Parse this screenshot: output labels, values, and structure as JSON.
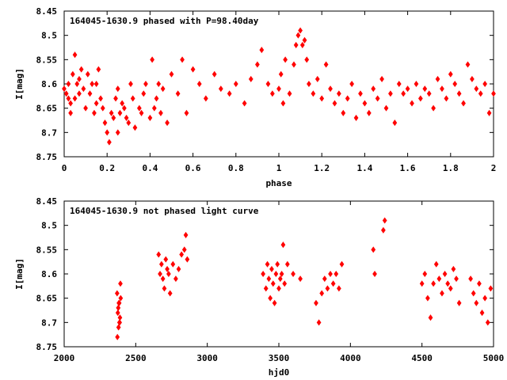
{
  "chart_data": [
    {
      "type": "scatter",
      "title": "164045-1630.9 phased with P=98.40day",
      "xlabel": "phase",
      "ylabel": "I[mag]",
      "xlim": [
        0,
        2
      ],
      "ylim": [
        8.45,
        8.75
      ],
      "y_inverted": true,
      "xticks": [
        "0",
        "0.2",
        "0.4",
        "0.6",
        "0.8",
        "1",
        "1.2",
        "1.4",
        "1.6",
        "1.8",
        "2"
      ],
      "yticks": [
        "8.45",
        "8.5",
        "8.55",
        "8.6",
        "8.65",
        "8.7",
        "8.75"
      ],
      "marker_color": "#ff0000",
      "series": [
        {
          "x": [
            0.0,
            0.01,
            0.02,
            0.02,
            0.03,
            0.03,
            0.04,
            0.05,
            0.05,
            0.06,
            0.07,
            0.07,
            0.08,
            0.09,
            0.1,
            0.11,
            0.12,
            0.13,
            0.14,
            0.15,
            0.15,
            0.16,
            0.17,
            0.18,
            0.19,
            0.2,
            0.21,
            0.22,
            0.23,
            0.24,
            0.25,
            0.25,
            0.26,
            0.27,
            0.28,
            0.29,
            0.3,
            0.31,
            0.32,
            0.33,
            0.35,
            0.36,
            0.37,
            0.38,
            0.4,
            0.41,
            0.42,
            0.43,
            0.44,
            0.45,
            0.46,
            0.48,
            0.5,
            0.53,
            0.55,
            0.57,
            0.6,
            0.63,
            0.66,
            0.7,
            0.73,
            0.77,
            0.8,
            0.84,
            0.87,
            0.9,
            0.92,
            0.95,
            0.97,
            1.0,
            1.01,
            1.02,
            1.03,
            1.05,
            1.07,
            1.08,
            1.09,
            1.1,
            1.11,
            1.12,
            1.13,
            1.14,
            1.16,
            1.18,
            1.2,
            1.22,
            1.24,
            1.26,
            1.28,
            1.3,
            1.32,
            1.34,
            1.36,
            1.38,
            1.4,
            1.42,
            1.44,
            1.46,
            1.48,
            1.5,
            1.52,
            1.54,
            1.56,
            1.58,
            1.6,
            1.62,
            1.64,
            1.66,
            1.68,
            1.7,
            1.72,
            1.74,
            1.76,
            1.78,
            1.8,
            1.82,
            1.84,
            1.86,
            1.88,
            1.9,
            1.92,
            1.94,
            1.96,
            1.98,
            2.0
          ],
          "y": [
            8.61,
            8.62,
            8.63,
            8.6,
            8.64,
            8.66,
            8.58,
            8.54,
            8.63,
            8.6,
            8.62,
            8.59,
            8.57,
            8.61,
            8.65,
            8.58,
            8.62,
            8.6,
            8.66,
            8.64,
            8.6,
            8.57,
            8.63,
            8.65,
            8.68,
            8.7,
            8.72,
            8.66,
            8.67,
            8.63,
            8.61,
            8.7,
            8.66,
            8.64,
            8.65,
            8.67,
            8.68,
            8.6,
            8.63,
            8.69,
            8.65,
            8.66,
            8.62,
            8.6,
            8.67,
            8.55,
            8.65,
            8.63,
            8.6,
            8.66,
            8.61,
            8.68,
            8.58,
            8.62,
            8.55,
            8.66,
            8.57,
            8.6,
            8.63,
            8.58,
            8.61,
            8.62,
            8.6,
            8.64,
            8.59,
            8.56,
            8.53,
            8.6,
            8.62,
            8.61,
            8.58,
            8.64,
            8.55,
            8.62,
            8.56,
            8.52,
            8.5,
            8.49,
            8.52,
            8.51,
            8.55,
            8.6,
            8.62,
            8.59,
            8.63,
            8.56,
            8.61,
            8.64,
            8.62,
            8.66,
            8.63,
            8.6,
            8.67,
            8.62,
            8.64,
            8.66,
            8.61,
            8.63,
            8.59,
            8.65,
            8.62,
            8.68,
            8.6,
            8.62,
            8.61,
            8.64,
            8.6,
            8.63,
            8.61,
            8.62,
            8.65,
            8.59,
            8.61,
            8.63,
            8.58,
            8.6,
            8.62,
            8.64,
            8.56,
            8.59,
            8.61,
            8.62,
            8.6,
            8.66,
            8.62
          ]
        }
      ]
    },
    {
      "type": "scatter",
      "title": "164045-1630.9 not phased light curve",
      "xlabel": "hjd0",
      "ylabel": "I[mag]",
      "xlim": [
        2000,
        5000
      ],
      "ylim": [
        8.45,
        8.75
      ],
      "y_inverted": true,
      "xticks": [
        "2000",
        "2500",
        "3000",
        "3500",
        "4000",
        "4500",
        "5000"
      ],
      "yticks": [
        "8.45",
        "8.5",
        "8.55",
        "8.6",
        "8.65",
        "8.7",
        "8.75"
      ],
      "marker_color": "#ff0000",
      "series": [
        {
          "x": [
            2370,
            2375,
            2380,
            2385,
            2390,
            2395,
            2372,
            2378,
            2388,
            2393,
            2382,
            2386,
            2660,
            2670,
            2680,
            2690,
            2700,
            2710,
            2720,
            2730,
            2740,
            2760,
            2780,
            2800,
            2820,
            2840,
            2850,
            2860,
            3390,
            3410,
            3420,
            3430,
            3440,
            3450,
            3460,
            3470,
            3480,
            3490,
            3500,
            3510,
            3520,
            3530,
            3540,
            3560,
            3600,
            3650,
            3760,
            3780,
            3800,
            3820,
            3840,
            3860,
            3880,
            3900,
            3920,
            3940,
            4160,
            4170,
            4230,
            4240,
            4500,
            4520,
            4540,
            4560,
            4580,
            4600,
            4620,
            4640,
            4660,
            4680,
            4700,
            4720,
            4740,
            4760,
            4840,
            4860,
            4880,
            4900,
            4920,
            4940,
            4960,
            4980
          ],
          "y": [
            8.64,
            8.68,
            8.71,
            8.66,
            8.69,
            8.65,
            8.73,
            8.67,
            8.7,
            8.62,
            8.66,
            8.7,
            8.56,
            8.6,
            8.58,
            8.61,
            8.63,
            8.57,
            8.59,
            8.6,
            8.64,
            8.58,
            8.61,
            8.59,
            8.56,
            8.55,
            8.52,
            8.57,
            8.6,
            8.63,
            8.58,
            8.61,
            8.65,
            8.59,
            8.62,
            8.66,
            8.6,
            8.58,
            8.63,
            8.61,
            8.6,
            8.54,
            8.62,
            8.58,
            8.6,
            8.61,
            8.66,
            8.7,
            8.64,
            8.61,
            8.63,
            8.6,
            8.62,
            8.6,
            8.63,
            8.58,
            8.55,
            8.6,
            8.51,
            8.49,
            8.62,
            8.6,
            8.65,
            8.69,
            8.62,
            8.58,
            8.61,
            8.64,
            8.6,
            8.62,
            8.63,
            8.59,
            8.61,
            8.66,
            8.61,
            8.64,
            8.66,
            8.62,
            8.68,
            8.65,
            8.7,
            8.63
          ]
        }
      ]
    }
  ]
}
